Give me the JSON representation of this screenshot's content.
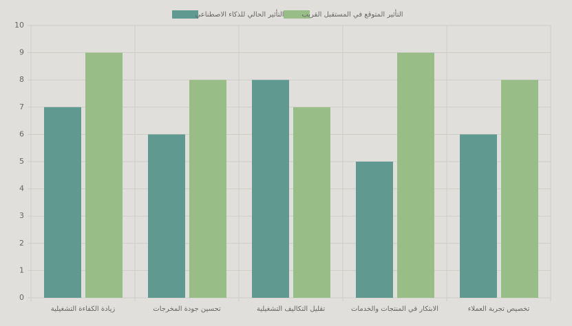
{
  "chart_data": {
    "type": "bar",
    "categories": [
      "زيادة الكفاءة التشغيلية",
      "تحسين جودة المخرجات",
      "تقليل التكاليف التشغيلية",
      "الابتكار في المنتجات والخدمات",
      "تخصيص تجربة العملاء"
    ],
    "series": [
      {
        "name": "التأثير الحالي للذكاء الاصطناعي",
        "color": "#5f9990",
        "values": [
          7,
          6,
          8,
          5,
          6
        ]
      },
      {
        "name": "التأثير المتوقع في المستقبل القريب",
        "color": "#98bd87",
        "values": [
          9,
          8,
          7,
          9,
          8
        ]
      }
    ],
    "ylim": [
      0,
      10
    ],
    "yticks": [
      0,
      1,
      2,
      3,
      4,
      5,
      6,
      7,
      8,
      9,
      10
    ],
    "grid": true
  }
}
